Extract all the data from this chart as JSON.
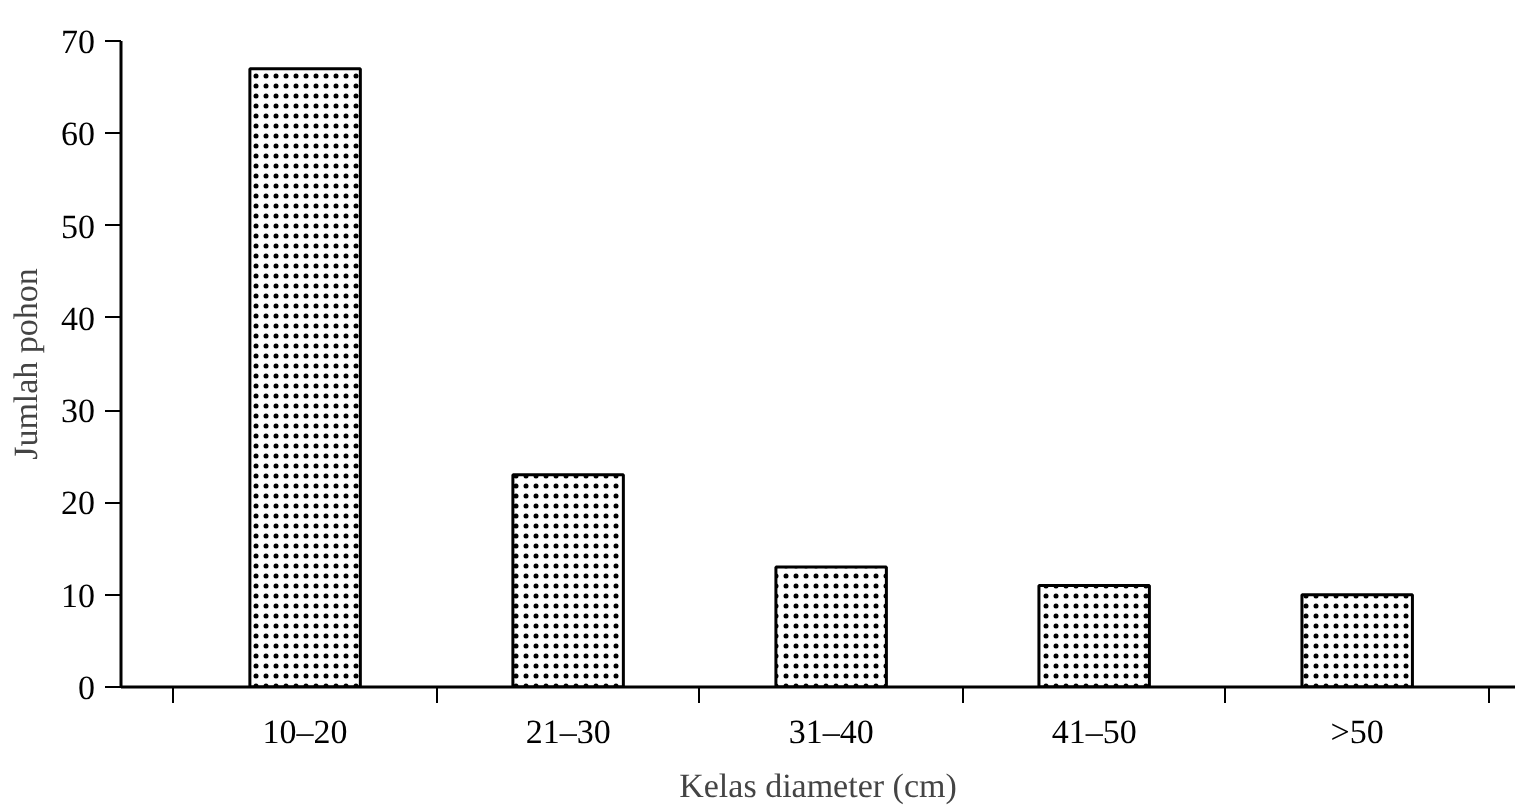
{
  "chart_data": {
    "type": "bar",
    "xlabel": "Kelas diameter (cm)",
    "ylabel": "Jumlah pohon",
    "categories": [
      "10–20",
      "21–30",
      "31–40",
      "41–50",
      ">50"
    ],
    "values": [
      67,
      23,
      13,
      11,
      10
    ],
    "color": "#000000",
    "ylim": [
      0,
      70
    ],
    "yticks": [
      0,
      10,
      20,
      30,
      40,
      50,
      60,
      70
    ],
    "grid": false
  }
}
